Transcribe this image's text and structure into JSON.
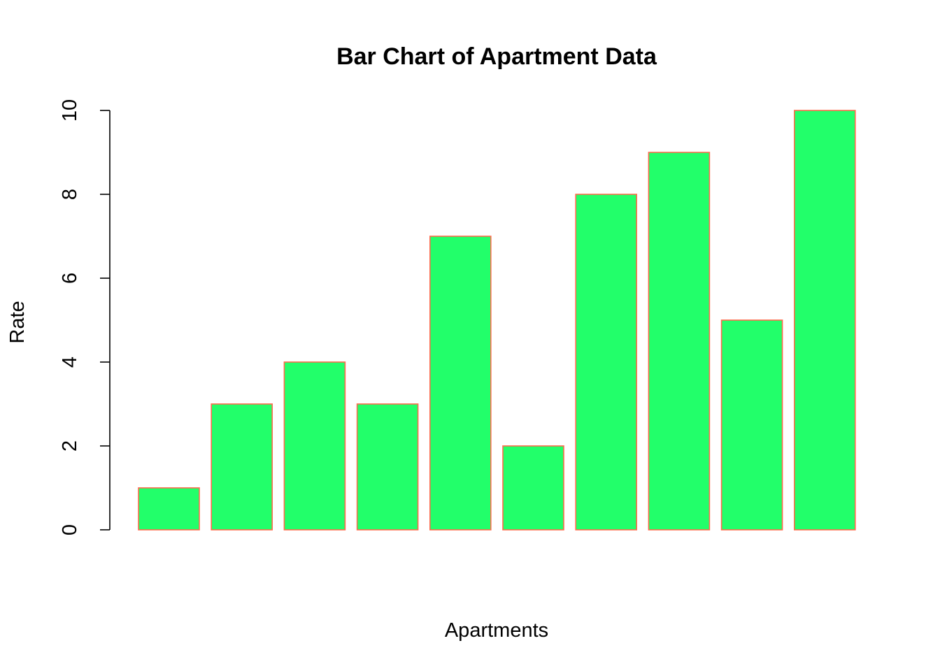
{
  "chart_data": {
    "type": "bar",
    "title": "Bar Chart of Apartment Data",
    "xlabel": "Apartments",
    "ylabel": "Rate",
    "values": [
      1,
      3,
      4,
      3,
      7,
      2,
      8,
      9,
      5,
      10
    ],
    "ylim": [
      0,
      10
    ],
    "yticks": [
      0,
      2,
      4,
      6,
      8,
      10
    ],
    "grid": false,
    "bar_fill": "#22FF6A",
    "bar_border": "#FF6A4D",
    "axis_color": "#000000",
    "background": "#FFFFFF"
  }
}
